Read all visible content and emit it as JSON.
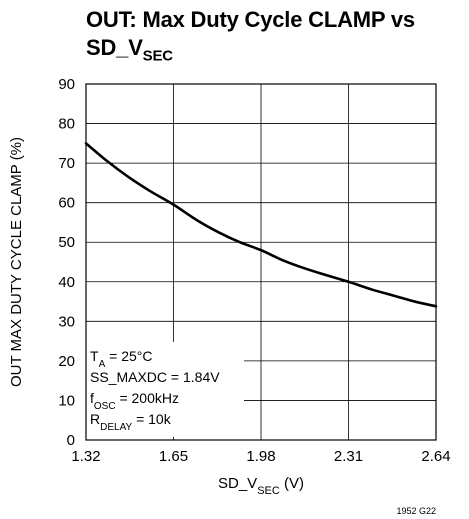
{
  "chart_data": {
    "type": "line",
    "title_main": "OUT: Max Duty Cycle CLAMP vs",
    "title_sd": "SD_V",
    "title_sub": "SEC",
    "xlabel_pre": "SD_V",
    "xlabel_sub": "SEC",
    "xlabel_post": " (V)",
    "ylabel": "OUT MAX DUTY CYCLE CLAMP (%)",
    "xlim": [
      1.32,
      2.64
    ],
    "ylim": [
      0,
      90
    ],
    "x_ticks": [
      "1.32",
      "1.65",
      "1.98",
      "2.31",
      "2.64"
    ],
    "y_ticks": [
      "0",
      "10",
      "20",
      "30",
      "40",
      "50",
      "60",
      "70",
      "80",
      "90"
    ],
    "grid": true,
    "series": [
      {
        "x": [
          1.32,
          1.4,
          1.48,
          1.56,
          1.65,
          1.74,
          1.82,
          1.9,
          1.98,
          2.06,
          2.14,
          2.22,
          2.31,
          2.4,
          2.48,
          2.56,
          2.64
        ],
        "values": [
          75,
          70.5,
          66.5,
          63,
          59.5,
          55.5,
          52.5,
          50,
          48,
          45.5,
          43.5,
          41.8,
          40,
          38,
          36.5,
          35,
          33.8
        ]
      }
    ],
    "conditions": {
      "ta_pre": "T",
      "ta_sub": "A",
      "ta_post": " = 25°C",
      "ss": "SS_MAXDC = 1.84V",
      "f_pre": "f",
      "f_sub": "OSC",
      "f_post": " = 200kHz",
      "r_pre": "R",
      "r_sub": "DELAY",
      "r_post": " = 10k"
    },
    "figure_id": "1952 G22"
  }
}
